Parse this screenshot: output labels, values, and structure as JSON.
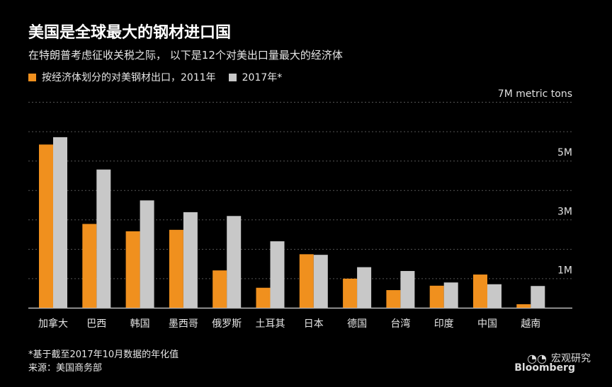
{
  "header": {
    "title": "美国是全球最大的钢材进口国",
    "subtitle": "在特朗普考虑征收关税之际， 以下是12个对美出口量最大的经济体"
  },
  "colors": {
    "series_2011": "#f0901e",
    "series_2017": "#c8c8c8",
    "grid": "#555555",
    "axis": "#bbbbbb"
  },
  "chart_data": {
    "type": "bar",
    "categories": [
      "加拿大",
      "巴西",
      "韩国",
      "墨西哥",
      "俄罗斯",
      "土耳其",
      "日本",
      "德国",
      "台湾",
      "印度",
      "中国",
      "越南"
    ],
    "series": [
      {
        "name": "按经济体划分的对美钢材出口，2011年",
        "values": [
          5.55,
          2.85,
          2.6,
          2.65,
          1.27,
          0.68,
          1.82,
          0.99,
          0.6,
          0.75,
          1.13,
          0.12
        ]
      },
      {
        "name": "2017年*",
        "values": [
          5.8,
          4.7,
          3.65,
          3.25,
          3.12,
          2.26,
          1.8,
          1.38,
          1.25,
          0.86,
          0.8,
          0.74
        ]
      }
    ],
    "yticks": [
      {
        "value": 1,
        "label": "1M"
      },
      {
        "value": 3,
        "label": "3M"
      },
      {
        "value": 5,
        "label": "5M"
      },
      {
        "value": 7,
        "label": "7M metric tons"
      }
    ],
    "gridlines": [
      0,
      1,
      2,
      3,
      4,
      5,
      6,
      7
    ],
    "ylim": [
      0,
      7
    ]
  },
  "notes": {
    "footnote": "*基于截至2017年10月数据的年化值",
    "source": "来源：美国商务部"
  },
  "watermark": {
    "text": "宏观研究",
    "icon": "wechat-icon"
  },
  "brand": "Bloomberg"
}
